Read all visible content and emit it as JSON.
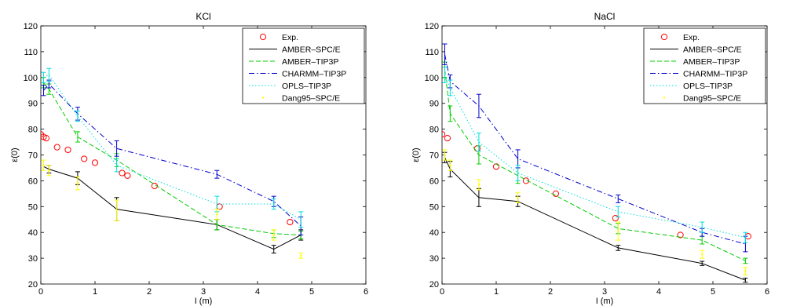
{
  "chart_data": [
    {
      "type": "line",
      "title": "KCl",
      "xlabel": "I (m)",
      "ylabel": "ε(0)",
      "xlim": [
        0,
        6
      ],
      "ylim": [
        20,
        120
      ],
      "xticks": [
        "0",
        "1",
        "2",
        "3",
        "4",
        "5",
        "6"
      ],
      "yticks": [
        "20",
        "30",
        "40",
        "50",
        "60",
        "70",
        "80",
        "90",
        "100",
        "110",
        "120"
      ],
      "legend_position": "top-right",
      "series": [
        {
          "name": "Exp.",
          "style": "circles",
          "color": "#ff0000",
          "x": [
            0.0,
            0.05,
            0.1,
            0.3,
            0.5,
            0.8,
            1.0,
            1.5,
            1.6,
            2.1,
            3.3,
            4.6
          ],
          "y": [
            78,
            77,
            76.5,
            73,
            72,
            68.5,
            67,
            63,
            62,
            58,
            50,
            44
          ]
        },
        {
          "name": "AMBER–SPC/E",
          "style": "solid",
          "color": "#000000",
          "x": [
            0.05,
            0.15,
            0.68,
            1.4,
            3.25,
            4.3,
            4.8
          ],
          "y": [
            65.5,
            64.5,
            61,
            49,
            43,
            33.5,
            39
          ],
          "err": [
            0,
            1.5,
            2.5,
            4.5,
            2,
            1.5,
            2
          ]
        },
        {
          "name": "AMBER–TIP3P",
          "style": "dashed",
          "color": "#00cc00",
          "x": [
            0.05,
            0.15,
            0.68,
            1.4,
            3.25,
            4.3,
            4.8
          ],
          "y": [
            98,
            95.5,
            77,
            68,
            43,
            39.5,
            39
          ],
          "err": [
            2,
            2,
            2,
            2.5,
            2,
            1.5,
            1.5
          ]
        },
        {
          "name": "CHARMM–TIP3P",
          "style": "dashdot",
          "color": "#0000cc",
          "x": [
            0.05,
            0.15,
            0.68,
            1.4,
            3.25,
            4.3,
            4.8
          ],
          "y": [
            95,
            97.5,
            86,
            72.5,
            62.5,
            52,
            42.5
          ],
          "err": [
            2,
            1.5,
            2.5,
            3,
            1.5,
            2,
            3.5
          ]
        },
        {
          "name": "OPLS–TIP3P",
          "style": "dotted",
          "color": "#00dddd",
          "x": [
            0.05,
            0.15,
            0.68,
            1.4,
            3.25,
            4.3,
            4.8
          ],
          "y": [
            100,
            101,
            85,
            66,
            51,
            51,
            45
          ],
          "err": [
            2,
            2.5,
            2,
            2.5,
            3,
            2,
            3
          ]
        },
        {
          "name": "Dang95–SPC/E",
          "style": "points",
          "color": "#ffff00",
          "x": [
            0.05,
            0.15,
            0.68,
            1.4,
            3.25,
            4.3,
            4.8
          ],
          "y": [
            66,
            64,
            59,
            48.5,
            47,
            39,
            31
          ],
          "err": [
            2,
            2,
            2.5,
            4,
            2,
            2,
            1
          ]
        }
      ]
    },
    {
      "type": "line",
      "title": "NaCl",
      "xlabel": "I (m)",
      "ylabel": "ε(0)",
      "xlim": [
        0,
        6
      ],
      "ylim": [
        20,
        120
      ],
      "xticks": [
        "0",
        "1",
        "2",
        "3",
        "4",
        "5",
        "6"
      ],
      "yticks": [
        "20",
        "30",
        "40",
        "50",
        "60",
        "70",
        "80",
        "90",
        "100",
        "110",
        "120"
      ],
      "legend_position": "top-right",
      "series": [
        {
          "name": "Exp.",
          "style": "circles",
          "color": "#ff0000",
          "x": [
            0.0,
            0.1,
            0.65,
            1.0,
            1.55,
            2.1,
            3.2,
            4.4,
            5.65
          ],
          "y": [
            78,
            76.5,
            72.5,
            65.5,
            60,
            55,
            45.5,
            39,
            38.5
          ]
        },
        {
          "name": "AMBER–SPC/E",
          "style": "solid",
          "color": "#000000",
          "x": [
            0.05,
            0.15,
            0.68,
            1.4,
            3.25,
            4.8,
            5.6
          ],
          "y": [
            69,
            64.5,
            53.5,
            52,
            34,
            28,
            21.5
          ],
          "err": [
            2,
            3,
            3.5,
            2,
            1,
            0.8,
            0.8
          ]
        },
        {
          "name": "AMBER–TIP3P",
          "style": "dashed",
          "color": "#00cc00",
          "x": [
            0.05,
            0.15,
            0.68,
            1.4,
            3.25,
            4.8,
            5.6
          ],
          "y": [
            103,
            86,
            70,
            62,
            41.5,
            37,
            29
          ],
          "err": [
            3,
            3,
            3.5,
            3,
            2,
            1.5,
            1
          ]
        },
        {
          "name": "CHARMM–TIP3P",
          "style": "dashdot",
          "color": "#0000cc",
          "x": [
            0.05,
            0.15,
            0.68,
            1.4,
            3.25,
            4.8,
            5.6
          ],
          "y": [
            109,
            98.5,
            89,
            68.5,
            53,
            40,
            35.5
          ],
          "err": [
            4,
            2.5,
            4.5,
            3.5,
            1.5,
            1.5,
            3
          ]
        },
        {
          "name": "OPLS–TIP3P",
          "style": "dotted",
          "color": "#00dddd",
          "x": [
            0.05,
            0.15,
            0.68,
            1.4,
            3.25,
            4.8,
            5.6
          ],
          "y": [
            101,
            96,
            75,
            63,
            48,
            42,
            38
          ],
          "err": [
            3,
            3,
            3.5,
            3,
            2,
            2,
            2
          ]
        },
        {
          "name": "Dang95–SPC/E",
          "style": "points",
          "color": "#ffff00",
          "x": [
            0.05,
            0.15,
            0.68,
            1.4,
            3.25,
            4.8,
            5.6
          ],
          "y": [
            70,
            66,
            58.5,
            53.5,
            40.5,
            31.5,
            25
          ],
          "err": [
            2,
            2,
            2,
            2,
            3.5,
            1.5,
            1.5
          ]
        }
      ]
    }
  ]
}
